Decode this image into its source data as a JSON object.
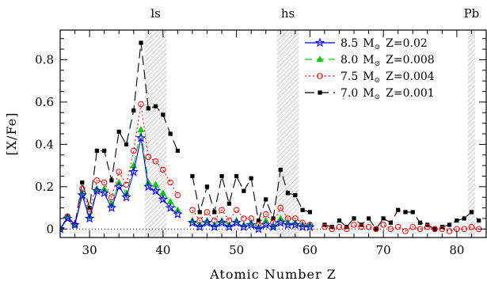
{
  "chart_data": {
    "type": "line",
    "xlabel": "Atomic Number Z",
    "ylabel": "[X/Fe]",
    "xlim": [
      26,
      84
    ],
    "ylim": [
      -0.04,
      0.94
    ],
    "xticks": [
      30,
      40,
      50,
      60,
      70,
      80
    ],
    "yticks": [
      0,
      0.2,
      0.4,
      0.6,
      0.8
    ],
    "ytick_labels": [
      "0",
      "0.2",
      "0.4",
      "0.6",
      "0.8"
    ],
    "reference_line_y": 0,
    "regions": [
      {
        "label": "ls",
        "from": 37.5,
        "to": 40.5
      },
      {
        "label": "hs",
        "from": 55.5,
        "to": 58.5
      },
      {
        "label": "Pb",
        "from": 81.5,
        "to": 82.5
      }
    ],
    "legend_position": "top-right",
    "series": [
      {
        "mass": "8.5",
        "unit": "M",
        "metal": "Z=0.02",
        "color": "#0000ff",
        "dash": "",
        "marker": "star",
        "points": [
          [
            26,
            0
          ],
          [
            27,
            0.05
          ],
          [
            28,
            0.02
          ],
          [
            29,
            0.16
          ],
          [
            30,
            0.05
          ],
          [
            31,
            0.18
          ],
          [
            32,
            0.17
          ],
          [
            33,
            0.1
          ],
          [
            34,
            0.2
          ],
          [
            35,
            0.15
          ],
          [
            36,
            0.27
          ],
          [
            37,
            0.43
          ],
          [
            38,
            0.2
          ],
          [
            39,
            0.18
          ],
          [
            40,
            0.14
          ],
          [
            41,
            0.1
          ],
          [
            42,
            0.07
          ],
          [
            44,
            0.03
          ],
          [
            45,
            0.01
          ],
          [
            46,
            0.03
          ],
          [
            47,
            0.01
          ],
          [
            48,
            0.03
          ],
          [
            49,
            0.01
          ],
          [
            50,
            0.03
          ],
          [
            51,
            0.01
          ],
          [
            52,
            0.02
          ],
          [
            53,
            0.0
          ],
          [
            54,
            0.02
          ],
          [
            55,
            0.01
          ],
          [
            56,
            0.03
          ],
          [
            57,
            0.02
          ],
          [
            58,
            0.02
          ],
          [
            59,
            0.01
          ],
          [
            60,
            0.01
          ]
        ]
      },
      {
        "mass": "8.0",
        "unit": "M",
        "metal": "Z=0.008",
        "color": "#00cc00",
        "dash": "9,6",
        "marker": "triangle",
        "points": [
          [
            26,
            0
          ],
          [
            27,
            0.06
          ],
          [
            28,
            0.02
          ],
          [
            29,
            0.17
          ],
          [
            30,
            0.06
          ],
          [
            31,
            0.19
          ],
          [
            32,
            0.19
          ],
          [
            33,
            0.12
          ],
          [
            34,
            0.22
          ],
          [
            35,
            0.17
          ],
          [
            36,
            0.3
          ],
          [
            37,
            0.47
          ],
          [
            38,
            0.22
          ],
          [
            39,
            0.21
          ],
          [
            40,
            0.17
          ],
          [
            41,
            0.13
          ],
          [
            42,
            0.09
          ],
          [
            44,
            0.04
          ],
          [
            45,
            0.02
          ],
          [
            46,
            0.04
          ],
          [
            47,
            0.02
          ],
          [
            48,
            0.04
          ],
          [
            49,
            0.02
          ],
          [
            50,
            0.04
          ],
          [
            51,
            0.02
          ],
          [
            52,
            0.03
          ],
          [
            53,
            0.01
          ],
          [
            54,
            0.04
          ],
          [
            55,
            0.01
          ],
          [
            56,
            0.05
          ],
          [
            57,
            0.03
          ],
          [
            58,
            0.03
          ],
          [
            59,
            0.02
          ],
          [
            60,
            0.02
          ]
        ]
      },
      {
        "mass": "7.5",
        "unit": "M",
        "metal": "Z=0.004",
        "color": "#ff0000",
        "dash": "2,3",
        "marker": "circle",
        "points": [
          [
            26,
            0
          ],
          [
            27,
            0.06
          ],
          [
            28,
            0.02
          ],
          [
            29,
            0.19
          ],
          [
            30,
            0.08
          ],
          [
            31,
            0.23
          ],
          [
            32,
            0.22
          ],
          [
            33,
            0.15
          ],
          [
            34,
            0.27
          ],
          [
            35,
            0.21
          ],
          [
            36,
            0.37
          ],
          [
            37,
            0.59
          ],
          [
            38,
            0.34
          ],
          [
            39,
            0.32
          ],
          [
            40,
            0.28
          ],
          [
            41,
            0.22
          ],
          [
            42,
            0.16
          ],
          [
            44,
            0.09
          ],
          [
            45,
            0.04
          ],
          [
            46,
            0.08
          ],
          [
            47,
            0.04
          ],
          [
            48,
            0.09
          ],
          [
            49,
            0.04
          ],
          [
            50,
            0.09
          ],
          [
            51,
            0.05
          ],
          [
            52,
            0.05
          ],
          [
            53,
            0.02
          ],
          [
            54,
            0.07
          ],
          [
            55,
            0.03
          ],
          [
            56,
            0.1
          ],
          [
            57,
            0.05
          ],
          [
            58,
            0.05
          ],
          [
            59,
            0.03
          ],
          [
            60,
            0.02
          ],
          [
            62,
            0.01
          ],
          [
            63,
            0.0
          ],
          [
            64,
            0.01
          ],
          [
            65,
            0.0
          ],
          [
            66,
            0.02
          ],
          [
            67,
            0.01
          ],
          [
            68,
            0.01
          ],
          [
            69,
            0.0
          ],
          [
            70,
            0.02
          ],
          [
            71,
            0.0
          ],
          [
            72,
            0.01
          ],
          [
            73,
            -0.01
          ],
          [
            74,
            0.01
          ],
          [
            75,
            0.0
          ],
          [
            76,
            0.01
          ],
          [
            77,
            0.0
          ],
          [
            78,
            0.0
          ],
          [
            79,
            -0.01
          ],
          [
            80,
            0.0
          ],
          [
            81,
            0.0
          ],
          [
            82,
            0.01
          ],
          [
            83,
            0.0
          ]
        ]
      },
      {
        "mass": "7.0",
        "unit": "M",
        "metal": "Z=0.001",
        "color": "#000000",
        "dash": "12,6",
        "marker": "square",
        "points": [
          [
            26,
            0
          ],
          [
            27,
            0.06
          ],
          [
            28,
            0.02
          ],
          [
            29,
            0.22
          ],
          [
            30,
            0.1
          ],
          [
            31,
            0.37
          ],
          [
            32,
            0.37
          ],
          [
            33,
            0.23
          ],
          [
            34,
            0.46
          ],
          [
            35,
            0.4
          ],
          [
            36,
            0.56
          ],
          [
            37,
            0.88
          ],
          [
            38,
            0.57
          ],
          [
            39,
            0.58
          ],
          [
            40,
            0.54
          ],
          [
            41,
            0.45
          ],
          [
            42,
            0.37
          ],
          [
            44,
            0.25
          ],
          [
            45,
            0.08
          ],
          [
            46,
            0.2
          ],
          [
            47,
            0.08
          ],
          [
            48,
            0.25
          ],
          [
            49,
            0.12
          ],
          [
            50,
            0.25
          ],
          [
            51,
            0.18
          ],
          [
            52,
            0.24
          ],
          [
            53,
            0.04
          ],
          [
            54,
            0.14
          ],
          [
            55,
            0.05
          ],
          [
            56,
            0.28
          ],
          [
            57,
            0.17
          ],
          [
            58,
            0.16
          ],
          [
            59,
            0.09
          ],
          [
            60,
            0.08
          ],
          [
            62,
            0.02
          ],
          [
            63,
            0.01
          ],
          [
            64,
            0.04
          ],
          [
            65,
            0.01
          ],
          [
            66,
            0.05
          ],
          [
            67,
            0.02
          ],
          [
            68,
            0.05
          ],
          [
            69,
            0.0
          ],
          [
            70,
            0.05
          ],
          [
            71,
            0.03
          ],
          [
            72,
            0.09
          ],
          [
            73,
            0.08
          ],
          [
            74,
            0.08
          ],
          [
            75,
            0.03
          ],
          [
            76,
            0.02
          ],
          [
            77,
            0.0
          ],
          [
            78,
            0.01
          ],
          [
            79,
            0.02
          ],
          [
            80,
            0.04
          ],
          [
            81,
            0.05
          ],
          [
            82,
            0.08
          ],
          [
            83,
            0.04
          ]
        ]
      }
    ]
  }
}
